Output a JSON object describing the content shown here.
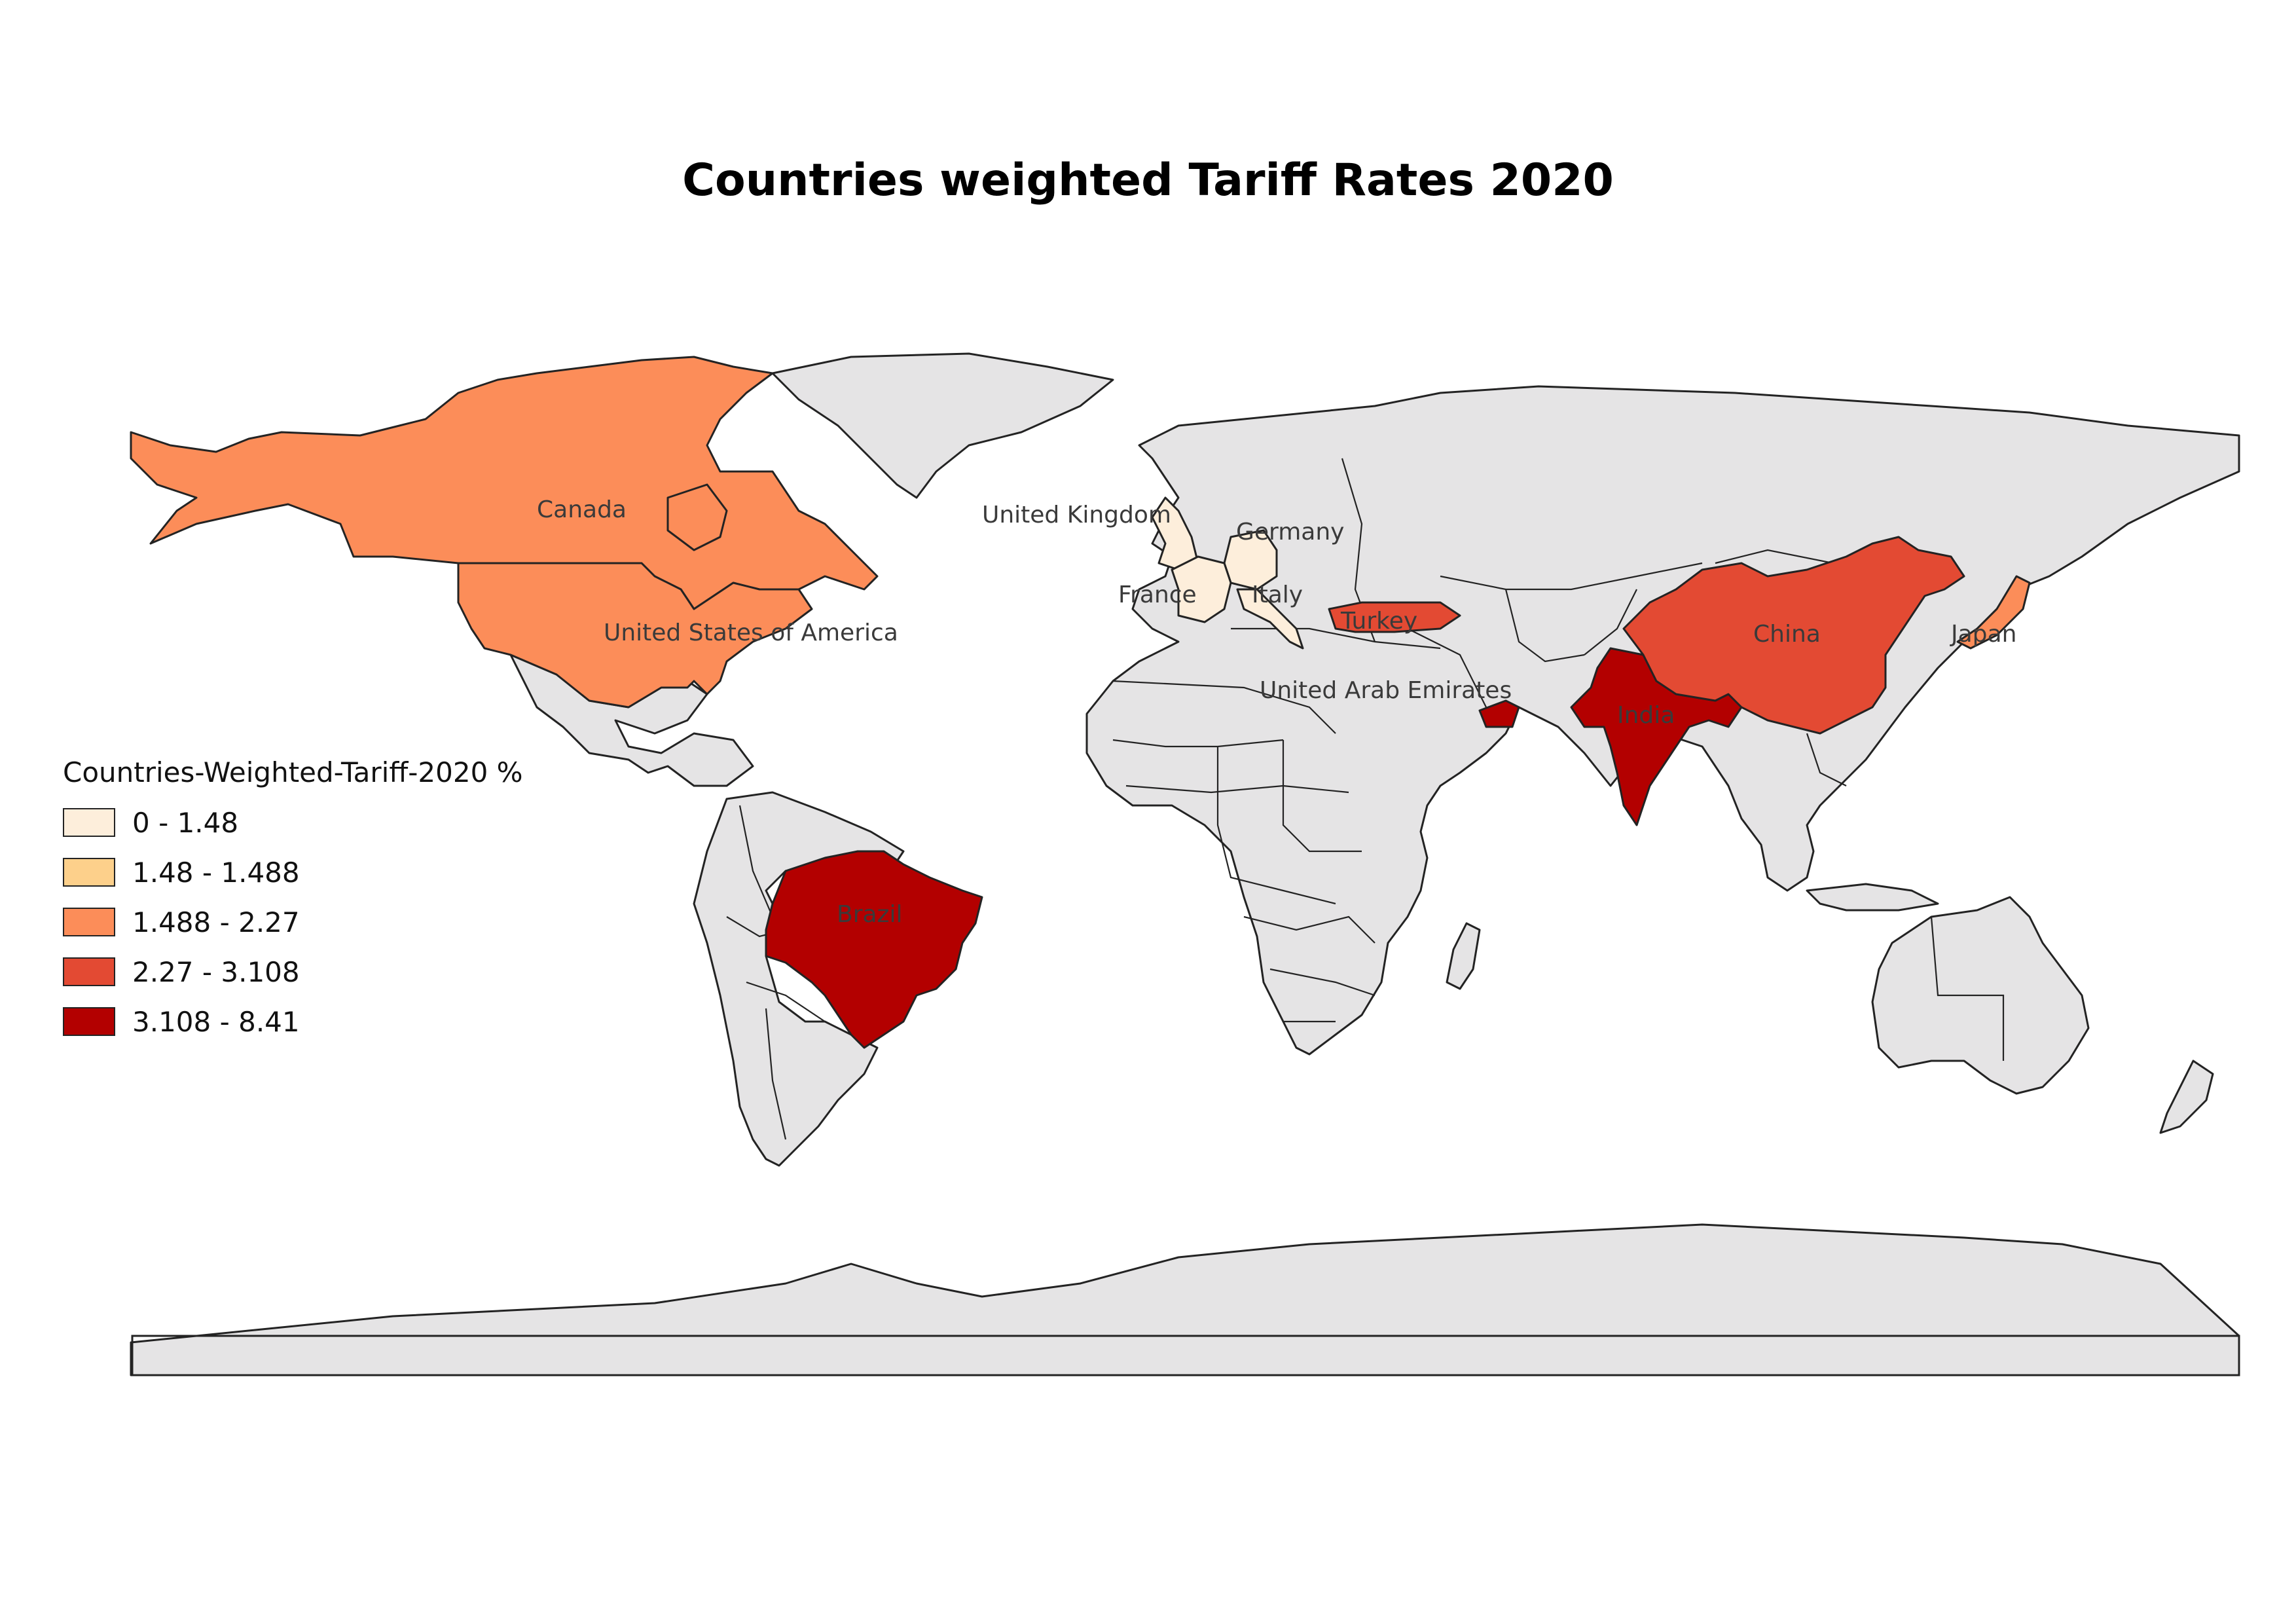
{
  "title": "Countries weighted Tariff Rates 2020",
  "legend": {
    "title": "Countries-Weighted-Tariff-2020 %",
    "classes": [
      {
        "label": "0 - 1.48",
        "color": "#fdeedb"
      },
      {
        "label": "1.48 - 1.488",
        "color": "#fdd08b"
      },
      {
        "label": "1.488 - 2.27",
        "color": "#fc8d59"
      },
      {
        "label": "2.27 - 3.108",
        "color": "#e34a33"
      },
      {
        "label": "3.108 - 8.41",
        "color": "#b30000"
      }
    ]
  },
  "map": {
    "background_land_color": "#e5e4e5",
    "countries": [
      {
        "name": "Canada",
        "class": 2
      },
      {
        "name": "United States of America",
        "class": 2
      },
      {
        "name": "United Kingdom",
        "class": 0
      },
      {
        "name": "Germany",
        "class": 0
      },
      {
        "name": "France",
        "class": 0
      },
      {
        "name": "Italy",
        "class": 0
      },
      {
        "name": "Turkey",
        "class": 3
      },
      {
        "name": "United Arab Emirates",
        "class": 4
      },
      {
        "name": "India",
        "class": 4
      },
      {
        "name": "China",
        "class": 3
      },
      {
        "name": "Japan",
        "class": 2
      },
      {
        "name": "Brazil",
        "class": 4
      }
    ]
  }
}
